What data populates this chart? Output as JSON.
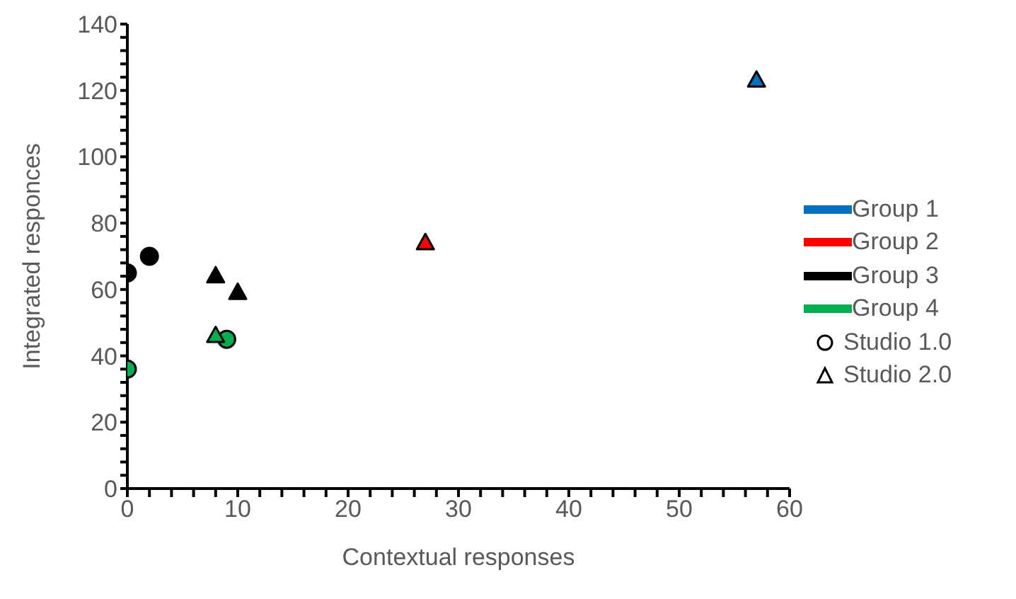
{
  "chart_data": {
    "type": "scatter",
    "xlabel": "Contextual responses",
    "ylabel": "Integrated responces",
    "xlim": [
      0,
      60
    ],
    "xticks": [
      0,
      {
        "value": 2,
        "label": null
      },
      {
        "value": 4,
        "label": null
      },
      {
        "value": 6,
        "label": null
      },
      {
        "value": 8,
        "label": null
      },
      10,
      {
        "value": 12,
        "label": null
      },
      {
        "value": 14,
        "label": null
      },
      {
        "value": 16,
        "label": null
      },
      {
        "value": 18,
        "label": null
      },
      20,
      {
        "value": 22,
        "label": null
      },
      {
        "value": 24,
        "label": null
      },
      {
        "value": 26,
        "label": null
      },
      {
        "value": 28,
        "label": null
      },
      30,
      {
        "value": 32,
        "label": null
      },
      {
        "value": 34,
        "label": null
      },
      {
        "value": 36,
        "label": null
      },
      {
        "value": 38,
        "label": null
      },
      40,
      {
        "value": 42,
        "label": null
      },
      {
        "value": 44,
        "label": null
      },
      {
        "value": 46,
        "label": null
      },
      {
        "value": 48,
        "label": null
      },
      50,
      {
        "value": 52,
        "label": null
      },
      {
        "value": 54,
        "label": null
      },
      {
        "value": 56,
        "label": null
      },
      {
        "value": 58,
        "label": null
      },
      60
    ],
    "ylim": [
      0,
      140
    ],
    "yticks": [
      0,
      {
        "value": 4,
        "label": null
      },
      {
        "value": 8,
        "label": null
      },
      {
        "value": 12,
        "label": null
      },
      {
        "value": 16,
        "label": null
      },
      20,
      {
        "value": 24,
        "label": null
      },
      {
        "value": 28,
        "label": null
      },
      {
        "value": 32,
        "label": null
      },
      {
        "value": 36,
        "label": null
      },
      40,
      {
        "value": 44,
        "label": null
      },
      {
        "value": 48,
        "label": null
      },
      {
        "value": 52,
        "label": null
      },
      {
        "value": 56,
        "label": null
      },
      60,
      {
        "value": 64,
        "label": null
      },
      {
        "value": 68,
        "label": null
      },
      {
        "value": 72,
        "label": null
      },
      {
        "value": 76,
        "label": null
      },
      80,
      {
        "value": 84,
        "label": null
      },
      {
        "value": 88,
        "label": null
      },
      {
        "value": 92,
        "label": null
      },
      {
        "value": 96,
        "label": null
      },
      100,
      {
        "value": 104,
        "label": null
      },
      {
        "value": 108,
        "label": null
      },
      {
        "value": 112,
        "label": null
      },
      {
        "value": 116,
        "label": null
      },
      120,
      {
        "value": 124,
        "label": null
      },
      {
        "value": 128,
        "label": null
      },
      {
        "value": 132,
        "label": null
      },
      {
        "value": 136,
        "label": null
      },
      140
    ],
    "legend": "right",
    "series": [
      {
        "name": "Group 1",
        "color": "#0070c0",
        "marker": "triangle",
        "x": [
          57
        ],
        "values": [
          123
        ]
      },
      {
        "name": "Group 2",
        "color": "#ff0000",
        "marker": "triangle",
        "x": [
          27
        ],
        "values": [
          74
        ]
      },
      {
        "name": "Group 3",
        "color": "#000000",
        "marker": "circle",
        "x": [
          0,
          2
        ],
        "values": [
          65,
          70
        ]
      },
      {
        "color": "#000000",
        "marker": "triangle",
        "x": [
          8,
          10
        ],
        "values": [
          64,
          59
        ]
      },
      {
        "name": "Group 4",
        "color": "#00b050",
        "marker": "circle",
        "x": [
          0,
          9
        ],
        "values": [
          36,
          45
        ]
      },
      {
        "color": "#00b050",
        "marker": "triangle",
        "x": [
          8
        ],
        "values": [
          46
        ]
      },
      {
        "name": "Studio 1.0",
        "marker": "circle"
      },
      {
        "name": "Studio 2.0",
        "marker": "triangle"
      }
    ]
  }
}
